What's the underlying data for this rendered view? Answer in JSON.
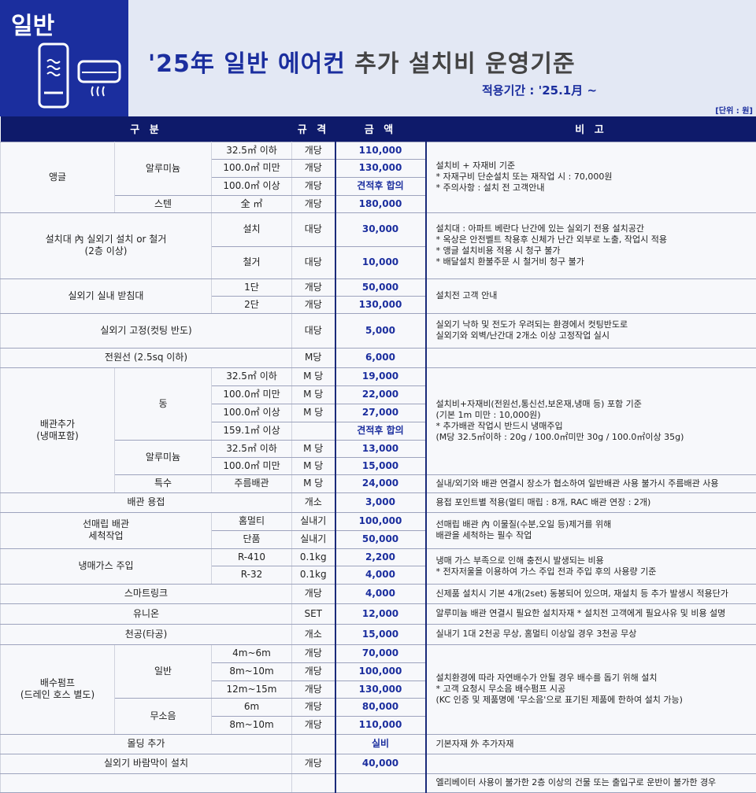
{
  "badge": {
    "label": "일반",
    "icons": [
      "standing-ac-icon",
      "wall-ac-icon"
    ]
  },
  "title": {
    "blue": "'25年 일반 에어컨",
    "rest": "추가 설치비 운영기준"
  },
  "period": "적용기간 : '25.1月 ~",
  "unit": "[단위 : 원]",
  "colors": {
    "navy": "#0e1a6a",
    "accent": "#1b2e9e",
    "title_bg": "#e3e8f4"
  },
  "headers": [
    "구 분",
    "규 격",
    "금 액",
    "비 고"
  ],
  "r": [
    [
      "앵글",
      "알루미늄",
      "32.5㎡ 이하",
      "개당",
      "110,000",
      "설치비 + 자재비 기준\n* 자재구비 단순설치 또는 재작업 시 : 70,000원\n* 주의사항 : 설치 전 고객안내"
    ],
    [
      "100.0㎡ 미만",
      "개당",
      "130,000"
    ],
    [
      "100.0㎡ 이상",
      "개당",
      "견적후 합의"
    ],
    [
      "스텐",
      "全 ㎡",
      "개당",
      "180,000"
    ],
    [
      "설치대 內 실외기 설치 or 철거\n(2층 이상)",
      "설치",
      "대당",
      "30,000",
      "설치대 : 아파트 베란다 난간에 있는 실외기 전용 설치공간\n* 옥상은 안전벨트 착용후 신체가 난간 외부로 노출, 작업시 적용\n* 앵글 설치비용 적용 시 청구 불가\n* 배달설치 환불주문 시 철거비 청구 불가"
    ],
    [
      "철거",
      "대당",
      "10,000"
    ],
    [
      "실외기 실내 받침대",
      "1단",
      "개당",
      "50,000",
      "설치전 고객 안내"
    ],
    [
      "2단",
      "개당",
      "130,000"
    ],
    [
      "실외기 고정(컷팅 반도)",
      "대당",
      "5,000",
      "실외기 낙하 및 전도가 우려되는 환경에서 컷팅반도로\n실외기와 외벽/난간대 2개소 이상 고정작업 실시"
    ],
    [
      "전원선 (2.5sq 이하)",
      "M당",
      "6,000",
      ""
    ],
    [
      "배관추가\n(냉매포함)",
      "동",
      "32.5㎡ 이하",
      "M 당",
      "19,000",
      "설치비+자재비(전원선,통신선,보온재,냉매 등) 포함 기준\n(기본 1m 미만 : 10,000원)\n* 추가배관 작업시 반드시 냉매주입\n(M당 32.5㎡이하 : 20g / 100.0㎡미만 30g / 100.0㎡이상 35g)"
    ],
    [
      "100.0㎡ 미만",
      "M 당",
      "22,000"
    ],
    [
      "100.0㎡ 이상",
      "M 당",
      "27,000"
    ],
    [
      "159.1㎡ 이상",
      "",
      "견적후 합의"
    ],
    [
      "알루미늄",
      "32.5㎡ 이하",
      "M 당",
      "13,000"
    ],
    [
      "100.0㎡ 미만",
      "M 당",
      "15,000"
    ],
    [
      "특수",
      "주름배관",
      "M 당",
      "24,000",
      "실내/외기와 배관 연결시 장소가 협소하여 일반배관 사용 불가시 주름배관 사용"
    ],
    [
      "배관 용접",
      "개소",
      "3,000",
      "용접 포인트별 적용(멀티 매립 : 8개, RAC 배관 연장 : 2개)"
    ],
    [
      "선매립 배관\n세척작업",
      "홈멀티",
      "실내기",
      "100,000",
      "선매립 배관 內 이물질(수분,오일 등)제거를 위해\n배관을 세척하는 필수 작업"
    ],
    [
      "단품",
      "실내기",
      "50,000"
    ],
    [
      "냉매가스 주입",
      "R-410",
      "0.1kg",
      "2,200",
      "냉매 가스 부족으로 인해 충전시 발생되는 비용\n * 전자저울을 이용하여 가스 주입 전과 주입 후의 사용량 기준"
    ],
    [
      "R-32",
      "0.1kg",
      "4,000"
    ],
    [
      "스마트링크",
      "개당",
      "4,000",
      "신제품 설치시 기본 4개(2set) 동봉되어 있으며, 재설치 등 추가 발생시 적용단가"
    ],
    [
      "유니온",
      "SET",
      "12,000",
      "알루미늄 배관 연결시 필요한 설치자재  * 설치전 고객에게 필요사유 및 비용 설명"
    ],
    [
      "천공(타공)",
      "개소",
      "15,000",
      "실내기 1대 2천공 무상, 홈멀티 이상일 경우 3천공 무상"
    ],
    [
      "배수펌프\n(드레인 호스 별도)",
      "일반",
      "4m~6m",
      "개당",
      "70,000",
      "설치환경에 따라 자연배수가 안될 경우 배수를 돕기 위해 설치\n * 고객 요청시 무소음 배수펌프 시공\n   (KC 인증 및 제품명에 '무소음'으로 표기된 제품에 한하여 설치 가능)"
    ],
    [
      "8m~10m",
      "개당",
      "100,000"
    ],
    [
      "12m~15m",
      "개당",
      "130,000"
    ],
    [
      "무소음",
      "6m",
      "개당",
      "80,000"
    ],
    [
      "8m~10m",
      "개당",
      "110,000"
    ],
    [
      "몰딩 추가",
      "",
      "실비",
      "기본자재 外 추가자재"
    ],
    [
      "실외기 바람막이 설치",
      "개당",
      "40,000",
      ""
    ],
    [
      "",
      "",
      "",
      "엘리베이터 사용이 불가한 2층 이상의 건물 또는 출입구로 운반이 불가한 경우"
    ]
  ]
}
